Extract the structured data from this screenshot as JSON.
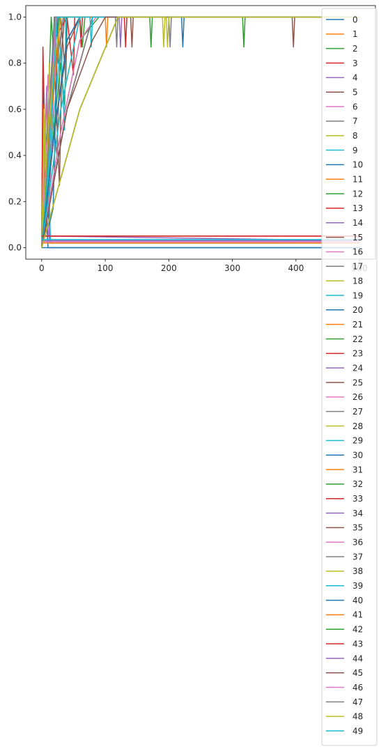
{
  "chart_data": {
    "type": "line",
    "title": "",
    "xlabel": "",
    "ylabel": "",
    "xlim": [
      -25,
      525
    ],
    "ylim": [
      -0.05,
      1.05
    ],
    "x_ticks": [
      0,
      100,
      200,
      300,
      400,
      500
    ],
    "y_ticks": [
      0.0,
      0.2,
      0.4,
      0.6,
      0.8,
      1.0
    ],
    "x_tick_labels": [
      "0",
      "100",
      "200",
      "300",
      "400",
      "500"
    ],
    "y_tick_labels": [
      "0.0",
      "0.2",
      "0.4",
      "0.6",
      "0.8",
      "1.0"
    ],
    "grid": false,
    "legend_position": "right",
    "palette": [
      "#1f77b4",
      "#ff7f0e",
      "#2ca02c",
      "#d62728",
      "#9467bd",
      "#8c564b",
      "#e377c2",
      "#7f7f7f",
      "#bcbd22",
      "#17becf"
    ],
    "series": [
      {
        "name": "0",
        "x": [
          0,
          2,
          4,
          6,
          8,
          10,
          12,
          500
        ],
        "y": [
          0.0,
          0.74,
          0.2,
          0.35,
          0.1,
          0.0,
          0.0,
          0.0
        ]
      },
      {
        "name": "1",
        "x": [
          0,
          3,
          6,
          9,
          12,
          500
        ],
        "y": [
          0.0,
          0.62,
          0.05,
          0.4,
          0.02,
          0.02
        ]
      },
      {
        "name": "2",
        "x": [
          0,
          5,
          10,
          15,
          18,
          20,
          22,
          24,
          26,
          28,
          30,
          316,
          318,
          320,
          322,
          500
        ],
        "y": [
          0.0,
          0.3,
          0.6,
          1.0,
          0.87,
          1.0,
          0.87,
          1.0,
          0.8,
          1.0,
          1.0,
          1.0,
          0.87,
          1.0,
          1.0,
          1.0
        ]
      },
      {
        "name": "3",
        "x": [
          0,
          2,
          4,
          6,
          500
        ],
        "y": [
          0.0,
          0.87,
          0.6,
          0.05,
          0.05
        ]
      },
      {
        "name": "4",
        "x": [
          0,
          4,
          8,
          12,
          500
        ],
        "y": [
          0.0,
          0.4,
          0.7,
          0.03,
          0.03
        ]
      },
      {
        "name": "5",
        "x": [
          0,
          10,
          20,
          28,
          32,
          36,
          40,
          394,
          396,
          398,
          400,
          500
        ],
        "y": [
          0.0,
          0.5,
          0.8,
          0.27,
          0.87,
          1.0,
          1.0,
          1.0,
          0.87,
          1.0,
          1.0,
          1.0
        ]
      },
      {
        "name": "6",
        "x": [
          0,
          6,
          10,
          14,
          18,
          22,
          500
        ],
        "y": [
          0.0,
          0.5,
          0.75,
          0.35,
          0.75,
          1.0,
          1.0
        ]
      },
      {
        "name": "7",
        "x": [
          0,
          8,
          16,
          24,
          30,
          34,
          500
        ],
        "y": [
          0.0,
          0.3,
          0.6,
          0.4,
          0.9,
          1.0,
          1.0
        ]
      },
      {
        "name": "8",
        "x": [
          0,
          4,
          8,
          12,
          16,
          20,
          24,
          500
        ],
        "y": [
          0.0,
          0.6,
          0.3,
          0.8,
          0.5,
          0.9,
          1.0,
          1.0
        ]
      },
      {
        "name": "9",
        "x": [
          0,
          3,
          6,
          10,
          14,
          18,
          500
        ],
        "y": [
          0.0,
          0.25,
          0.1,
          0.4,
          0.02,
          0.02,
          0.02
        ]
      },
      {
        "name": "10",
        "x": [
          0,
          10,
          20,
          220,
          222,
          224,
          226,
          500
        ],
        "y": [
          0.0,
          0.5,
          1.0,
          1.0,
          0.87,
          1.0,
          1.0,
          1.0
        ]
      },
      {
        "name": "11",
        "x": [
          0,
          12,
          24,
          500
        ],
        "y": [
          0.0,
          0.4,
          1.0,
          1.0
        ]
      },
      {
        "name": "12",
        "x": [
          0,
          15,
          30,
          36,
          40,
          44,
          500
        ],
        "y": [
          0.0,
          0.4,
          0.8,
          0.62,
          1.0,
          1.0,
          1.0
        ]
      },
      {
        "name": "13",
        "x": [
          0,
          10,
          20,
          40,
          50,
          52,
          54,
          500
        ],
        "y": [
          0.0,
          0.5,
          0.9,
          1.0,
          0.75,
          1.0,
          1.0,
          1.0
        ]
      },
      {
        "name": "14",
        "x": [
          0,
          5,
          10,
          500
        ],
        "y": [
          0.0,
          0.3,
          0.05,
          0.03
        ]
      },
      {
        "name": "15",
        "x": [
          0,
          10,
          20,
          30,
          38,
          40,
          42,
          500
        ],
        "y": [
          0.0,
          0.5,
          0.75,
          1.0,
          0.73,
          1.0,
          1.0,
          1.0
        ]
      },
      {
        "name": "16",
        "x": [
          0,
          6,
          12,
          18,
          24,
          500
        ],
        "y": [
          0.0,
          0.5,
          0.2,
          0.6,
          1.0,
          1.0
        ]
      },
      {
        "name": "17",
        "x": [
          0,
          12,
          24,
          34,
          500
        ],
        "y": [
          0.0,
          0.55,
          0.8,
          1.0,
          1.0
        ]
      },
      {
        "name": "18",
        "x": [
          0,
          4,
          8,
          16,
          24,
          500
        ],
        "y": [
          0.0,
          0.55,
          0.15,
          0.7,
          1.0,
          1.0
        ]
      },
      {
        "name": "19",
        "x": [
          0,
          10,
          20,
          30,
          36,
          38,
          42,
          500
        ],
        "y": [
          0.0,
          0.3,
          0.6,
          0.87,
          0.51,
          1.0,
          1.0,
          1.0
        ]
      },
      {
        "name": "20",
        "x": [
          0,
          6,
          12,
          18,
          22,
          26,
          500
        ],
        "y": [
          0.0,
          0.3,
          0.1,
          0.17,
          0.6,
          1.0,
          1.0
        ]
      },
      {
        "name": "21",
        "x": [
          0,
          10,
          20,
          30,
          40,
          500
        ],
        "y": [
          0.0,
          0.4,
          0.7,
          1.0,
          1.0,
          1.0
        ]
      },
      {
        "name": "22",
        "x": [
          0,
          20,
          40,
          60,
          64,
          68,
          500
        ],
        "y": [
          0.0,
          0.5,
          0.9,
          1.0,
          0.87,
          1.0,
          1.0
        ]
      },
      {
        "name": "23",
        "x": [
          0,
          20,
          40,
          60,
          62,
          64,
          500
        ],
        "y": [
          0.0,
          0.5,
          0.9,
          1.0,
          0.87,
          1.0,
          1.0
        ]
      },
      {
        "name": "24",
        "x": [
          0,
          8,
          16,
          24,
          500
        ],
        "y": [
          0.0,
          0.4,
          0.8,
          1.0,
          1.0
        ]
      },
      {
        "name": "25",
        "x": [
          0,
          20,
          40,
          60,
          500
        ],
        "y": [
          0.0,
          0.5,
          0.87,
          1.0,
          1.0
        ]
      },
      {
        "name": "26",
        "x": [
          0,
          8,
          16,
          24,
          500
        ],
        "y": [
          0.0,
          0.4,
          0.75,
          1.0,
          1.0
        ]
      },
      {
        "name": "27",
        "x": [
          0,
          10,
          20,
          500
        ],
        "y": [
          0.0,
          0.4,
          1.0,
          1.0
        ]
      },
      {
        "name": "28",
        "x": [
          0,
          10,
          20,
          30,
          500
        ],
        "y": [
          0.0,
          0.5,
          0.8,
          1.0,
          1.0
        ]
      },
      {
        "name": "29",
        "x": [
          0,
          12,
          24,
          500
        ],
        "y": [
          0.0,
          0.4,
          1.0,
          1.0
        ]
      },
      {
        "name": "30",
        "x": [
          0,
          20,
          40,
          60,
          500
        ],
        "y": [
          0.0,
          0.5,
          0.9,
          1.0,
          1.0
        ]
      },
      {
        "name": "31",
        "x": [
          0,
          30,
          60,
          100,
          102,
          104,
          500
        ],
        "y": [
          0.0,
          0.6,
          1.0,
          1.0,
          0.87,
          1.0,
          1.0
        ]
      },
      {
        "name": "32",
        "x": [
          0,
          30,
          60,
          90,
          500
        ],
        "y": [
          0.0,
          0.5,
          0.9,
          1.0,
          1.0
        ]
      },
      {
        "name": "33",
        "x": [
          0,
          40,
          80,
          130,
          132,
          134,
          500
        ],
        "y": [
          0.0,
          0.6,
          1.0,
          1.0,
          0.87,
          1.0,
          1.0
        ]
      },
      {
        "name": "34",
        "x": [
          0,
          40,
          80,
          122,
          124,
          126,
          500
        ],
        "y": [
          0.0,
          0.6,
          1.0,
          1.0,
          0.87,
          1.0,
          1.0
        ]
      },
      {
        "name": "35",
        "x": [
          0,
          40,
          80,
          140,
          142,
          144,
          500
        ],
        "y": [
          0.0,
          0.6,
          1.0,
          1.0,
          0.87,
          1.0,
          1.0
        ]
      },
      {
        "name": "36",
        "x": [
          0,
          30,
          60,
          86,
          500
        ],
        "y": [
          0.0,
          0.5,
          0.9,
          1.0,
          1.0
        ]
      },
      {
        "name": "37",
        "x": [
          0,
          40,
          80,
          116,
          118,
          120,
          500
        ],
        "y": [
          0.0,
          0.6,
          1.0,
          1.0,
          0.87,
          1.0,
          1.0
        ]
      },
      {
        "name": "38",
        "x": [
          0,
          60,
          120,
          190,
          192,
          194,
          500
        ],
        "y": [
          0.0,
          0.6,
          1.0,
          1.0,
          0.87,
          1.0,
          1.0
        ]
      },
      {
        "name": "39",
        "x": [
          0,
          30,
          60,
          76,
          78,
          80,
          500
        ],
        "y": [
          0.0,
          0.6,
          1.0,
          1.0,
          0.87,
          1.0,
          1.0
        ]
      },
      {
        "name": "40",
        "x": [
          0,
          500
        ],
        "y": [
          0.0,
          0.0
        ]
      },
      {
        "name": "41",
        "x": [
          0,
          500
        ],
        "y": [
          0.02,
          0.02
        ]
      },
      {
        "name": "42",
        "x": [
          0,
          60,
          120,
          170,
          172,
          174,
          500
        ],
        "y": [
          0.0,
          0.6,
          1.0,
          1.0,
          0.87,
          1.0,
          1.0
        ]
      },
      {
        "name": "43",
        "x": [
          0,
          500
        ],
        "y": [
          0.05,
          0.05
        ]
      },
      {
        "name": "44",
        "x": [
          0,
          500
        ],
        "y": [
          0.03,
          0.03
        ]
      },
      {
        "name": "45",
        "x": [
          0,
          40,
          80,
          100,
          500
        ],
        "y": [
          0.0,
          0.6,
          0.9,
          1.0,
          1.0
        ]
      },
      {
        "name": "46",
        "x": [
          0,
          500
        ],
        "y": [
          0.025,
          0.025
        ]
      },
      {
        "name": "47",
        "x": [
          0,
          60,
          120,
          200,
          202,
          204,
          500
        ],
        "y": [
          0.0,
          0.6,
          1.0,
          1.0,
          0.87,
          1.0,
          1.0
        ]
      },
      {
        "name": "48",
        "x": [
          0,
          60,
          120,
          196,
          198,
          200,
          500
        ],
        "y": [
          0.0,
          0.6,
          1.0,
          1.0,
          0.87,
          1.0,
          1.0
        ]
      },
      {
        "name": "49",
        "x": [
          0,
          500
        ],
        "y": [
          0.035,
          0.035
        ]
      }
    ]
  }
}
